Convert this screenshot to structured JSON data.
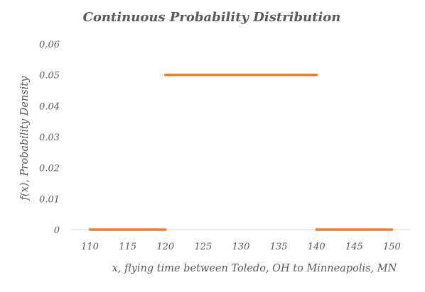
{
  "chart_data": {
    "type": "line",
    "title": "Continuous Probability Distribution",
    "xlabel": "x, flying time between Toledo, OH to Minneapolis, MN",
    "ylabel": "f(x), Probability Density",
    "x_ticks": [
      "110",
      "115",
      "120",
      "125",
      "130",
      "135",
      "140",
      "145",
      "150"
    ],
    "y_ticks": [
      "0",
      "0.01",
      "0.02",
      "0.03",
      "0.04",
      "0.05",
      "0.06"
    ],
    "xlim": [
      107.5,
      152.5
    ],
    "ylim": [
      0,
      0.06
    ],
    "grid": false,
    "legend": "none",
    "series": [
      {
        "color": "#ED7D31",
        "segments": [
          {
            "x": [
              110,
              120
            ],
            "y": [
              0,
              0
            ]
          },
          {
            "x": [
              120,
              140
            ],
            "y": [
              0.05,
              0.05
            ]
          },
          {
            "x": [
              140,
              150
            ],
            "y": [
              0,
              0
            ]
          }
        ]
      }
    ],
    "axis_color": "#D9D9D9",
    "text_color": "#595959"
  }
}
